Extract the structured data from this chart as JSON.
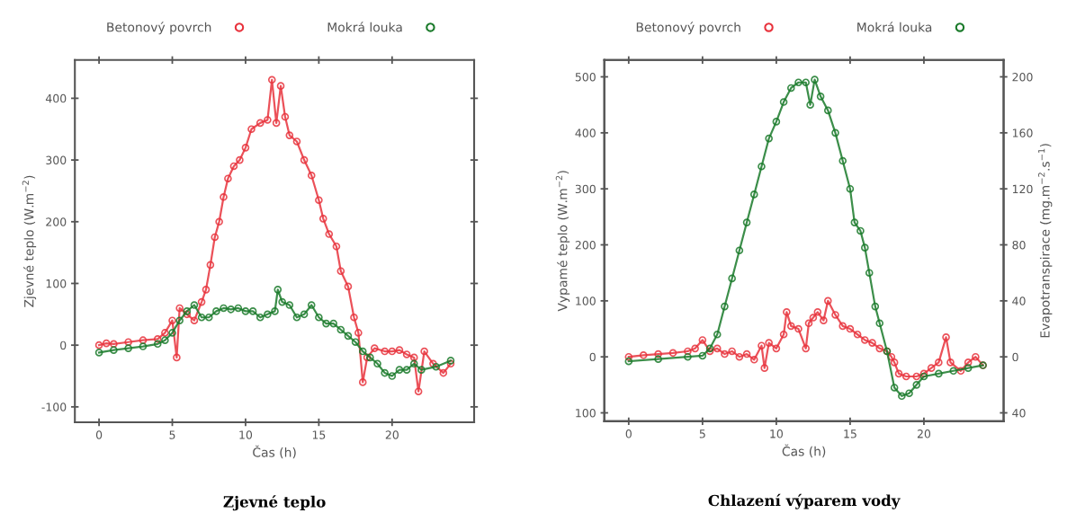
{
  "chart_data": [
    {
      "type": "line",
      "title": "Zjevné teplo",
      "xlabel": "Čas (h)",
      "ylabel": "Zjevné teplo (W.m$^{−2}$)",
      "xlim": [
        -1.65,
        25.6
      ],
      "xticks": [
        0,
        5,
        10,
        15,
        20
      ],
      "ylim": [
        -125,
        462
      ],
      "yticks": [
        {
          "value": -100,
          "label": "-100"
        },
        0,
        100,
        200,
        300,
        400
      ],
      "legend": "top",
      "marker": "circle",
      "series": [
        {
          "name": "Betonový povrch",
          "color": "#e8323c",
          "x": [
            0,
            0.5,
            1,
            2,
            3,
            4,
            4.5,
            5,
            5.3,
            5.5,
            6,
            6.5,
            7,
            7.3,
            7.6,
            7.9,
            8.2,
            8.5,
            8.8,
            9.2,
            9.6,
            10,
            10.4,
            11,
            11.5,
            11.8,
            12.1,
            12.4,
            12.7,
            13,
            13.5,
            14,
            14.5,
            15,
            15.3,
            15.7,
            16.2,
            16.5,
            17,
            17.4,
            17.7,
            18,
            18.3,
            18.8,
            19.5,
            20,
            20.5,
            21,
            21.5,
            21.8,
            22.2,
            22.8,
            23.5,
            24
          ],
          "values": [
            0,
            3,
            2,
            5,
            8,
            10,
            20,
            40,
            -20,
            60,
            50,
            40,
            70,
            90,
            130,
            175,
            200,
            240,
            270,
            290,
            300,
            320,
            350,
            360,
            365,
            430,
            360,
            420,
            370,
            340,
            330,
            300,
            275,
            235,
            205,
            180,
            160,
            120,
            95,
            45,
            20,
            -60,
            -20,
            -5,
            -10,
            -10,
            -8,
            -15,
            -20,
            -75,
            -10,
            -30,
            -45,
            -30
          ]
        },
        {
          "name": "Mokrá louka",
          "color": "#1a7a2a",
          "x": [
            0,
            1,
            2,
            3,
            4,
            4.5,
            5,
            5.5,
            6,
            6.5,
            7,
            7.5,
            8,
            8.5,
            9,
            9.5,
            10,
            10.5,
            11,
            11.5,
            12,
            12.2,
            12.5,
            13,
            13.5,
            14,
            14.5,
            15,
            15.5,
            16,
            16.5,
            17,
            17.5,
            18,
            18.5,
            19,
            19.5,
            20,
            20.5,
            21,
            21.5,
            22,
            23,
            24
          ],
          "values": [
            -12,
            -8,
            -5,
            -2,
            2,
            8,
            20,
            40,
            55,
            65,
            45,
            45,
            55,
            60,
            58,
            60,
            55,
            55,
            45,
            50,
            55,
            90,
            70,
            65,
            45,
            50,
            65,
            45,
            35,
            35,
            25,
            15,
            5,
            -10,
            -20,
            -30,
            -45,
            -50,
            -40,
            -40,
            -30,
            -40,
            -35,
            -25
          ]
        }
      ]
    },
    {
      "type": "line",
      "title": "Chlazení výparem vody",
      "xlabel": "Čas (h)",
      "ylabel": "Vypamé teplo (W.m$^{−2}$)",
      "y2label": "Evapotranspirace (mg.m$^{−2}$.s$^{−1}$)",
      "xlim": [
        -1.65,
        25.4
      ],
      "xticks": [
        0,
        5,
        10,
        15,
        20
      ],
      "ylim": [
        -115,
        530
      ],
      "yticks": [
        {
          "value": -100,
          "label": "100"
        },
        0,
        100,
        200,
        300,
        400,
        500
      ],
      "y2lim": [
        -46,
        212
      ],
      "y2ticks": [
        {
          "value": -40,
          "label": "40"
        },
        0,
        40,
        80,
        120,
        160,
        200
      ],
      "legend": "top",
      "marker": "circle",
      "series": [
        {
          "name": "Betonový povrch",
          "color": "#e8323c",
          "x": [
            0,
            1,
            2,
            3,
            4,
            4.5,
            5,
            5.5,
            6,
            6.5,
            7,
            7.5,
            8,
            8.5,
            9,
            9.2,
            9.5,
            10,
            10.5,
            10.7,
            11,
            11.5,
            12,
            12.2,
            12.5,
            12.8,
            13.2,
            13.5,
            14,
            14.5,
            15,
            15.5,
            16,
            16.5,
            17,
            17.5,
            17.8,
            18,
            18.3,
            18.8,
            19.5,
            20,
            20.5,
            21,
            21.5,
            21.8,
            22.5,
            23,
            23.5,
            24
          ],
          "values": [
            0,
            3,
            5,
            7,
            10,
            15,
            30,
            10,
            15,
            5,
            10,
            0,
            5,
            -5,
            20,
            -20,
            25,
            15,
            40,
            80,
            55,
            50,
            15,
            60,
            70,
            80,
            65,
            100,
            75,
            55,
            50,
            40,
            30,
            25,
            15,
            10,
            0,
            -10,
            -30,
            -35,
            -35,
            -30,
            -20,
            -10,
            35,
            -10,
            -25,
            -10,
            0,
            -15
          ]
        },
        {
          "name": "Mokrá louka",
          "color": "#1a7a2a",
          "axis": "y2",
          "x": [
            0,
            2,
            4,
            5,
            5.5,
            6,
            6.5,
            7,
            7.5,
            8,
            8.5,
            9,
            9.5,
            10,
            10.5,
            11,
            11.5,
            12,
            12.3,
            12.6,
            13,
            13.5,
            14,
            14.5,
            15,
            15.3,
            15.7,
            16,
            16.3,
            16.7,
            17,
            17.5,
            18,
            18.5,
            19,
            19.5,
            20,
            21,
            22,
            23,
            24
          ],
          "values": [
            -3.2,
            -1.6,
            0,
            0.8,
            6,
            16,
            36,
            56,
            76,
            96,
            116,
            136,
            156,
            168,
            182,
            192,
            196,
            196,
            180,
            198,
            186,
            176,
            160,
            140,
            120,
            96,
            90,
            78,
            60,
            36,
            24,
            4,
            -22,
            -28,
            -26,
            -20,
            -14,
            -12,
            -10,
            -8,
            -6
          ]
        }
      ]
    }
  ]
}
